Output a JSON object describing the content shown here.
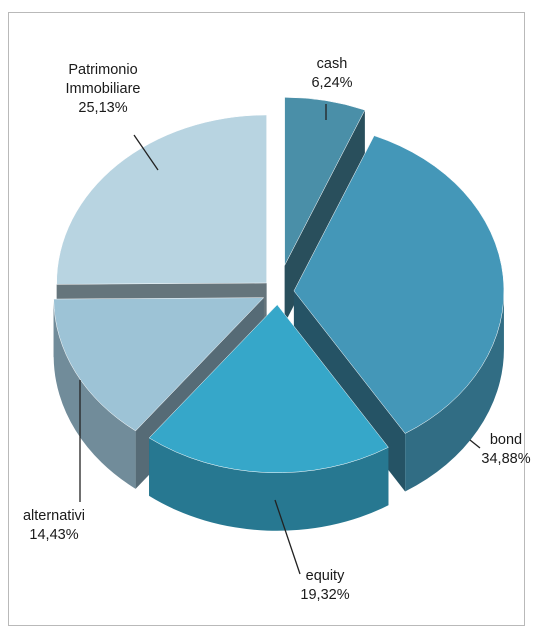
{
  "chart_data": {
    "type": "pie",
    "title": "",
    "slices": [
      {
        "label": "cash",
        "value": 6.24,
        "display": "6,24%",
        "color": "#4a8fa8"
      },
      {
        "label": "bond",
        "value": 34.88,
        "display": "34,88%",
        "color": "#4497b8"
      },
      {
        "label": "equity",
        "value": 19.32,
        "display": "19,32%",
        "color": "#36a7c9"
      },
      {
        "label": "alternativi",
        "value": 14.43,
        "display": "14,43%",
        "color": "#9dc3d6"
      },
      {
        "label": "Patrimonio\nImmobiliare",
        "display_lines": [
          "Patrimonio",
          "Immobiliare"
        ],
        "value": 25.13,
        "display": "25,13%",
        "color": "#b8d4e1"
      }
    ],
    "exploded": true,
    "style": "3d",
    "legend": "none"
  }
}
